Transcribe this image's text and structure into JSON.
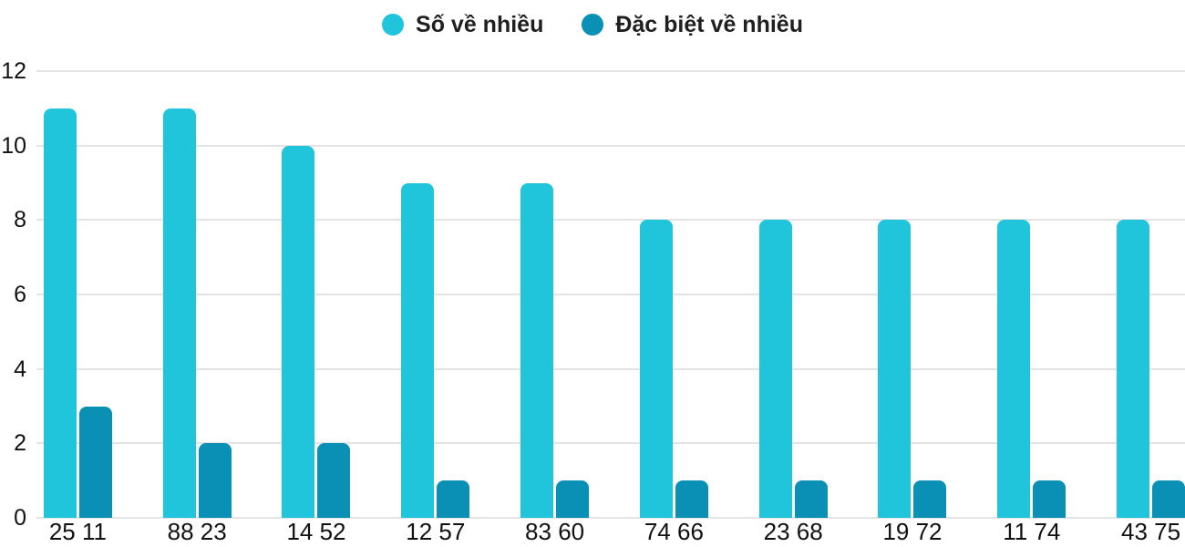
{
  "legend": {
    "items": [
      {
        "label": "Số về nhiều",
        "color": "#20C5DC"
      },
      {
        "label": "Đặc biệt về nhiều",
        "color": "#0A90B4"
      }
    ]
  },
  "colors": {
    "series1": "#20C5DC",
    "series2": "#0A90B4",
    "gridline": "#e3e3e3",
    "axis_text": "#111111",
    "legend_text": "#1f1f1f",
    "background": "#ffffff"
  },
  "chart_data": {
    "type": "bar",
    "title": "",
    "xlabel": "",
    "ylabel": "",
    "categories": [
      "25 11",
      "88 23",
      "14 52",
      "12 57",
      "83 60",
      "74 66",
      "23 68",
      "19 72",
      "11 74",
      "43 75"
    ],
    "series": [
      {
        "name": "Số về nhiều",
        "color": "#20C5DC",
        "values": [
          11,
          11,
          10,
          9,
          9,
          8,
          8,
          8,
          8,
          8
        ]
      },
      {
        "name": "Đặc biệt về nhiều",
        "color": "#0A90B4",
        "values": [
          3,
          2,
          2,
          1,
          1,
          1,
          1,
          1,
          1,
          1
        ]
      }
    ],
    "yticks": [
      0,
      2,
      4,
      6,
      8,
      10,
      12
    ],
    "ylim": [
      0,
      12
    ],
    "grid": true,
    "legend_position": "top-center"
  }
}
